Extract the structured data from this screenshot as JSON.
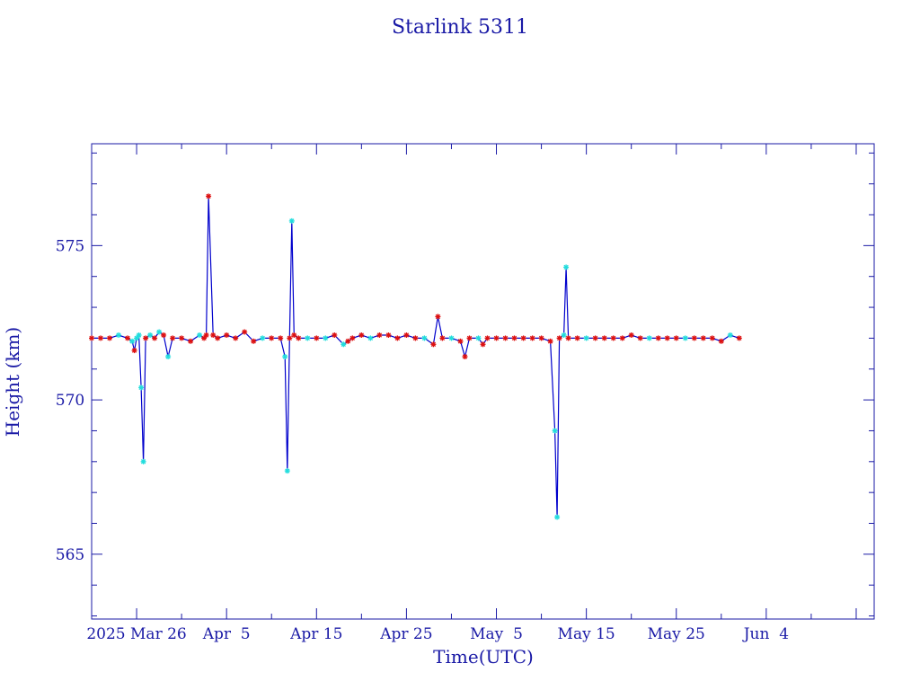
{
  "chart_data": {
    "type": "line",
    "title": "Starlink 5311",
    "xlabel": "Time(UTC)",
    "ylabel": "Height (km)",
    "x_tick_labels": [
      "2025 Mar 26",
      "Apr  5",
      "Apr 15",
      "Apr 25",
      "May  5",
      "May 15",
      "May 25",
      "Jun  4"
    ],
    "y_tick_labels": [
      "565",
      "570",
      "575"
    ],
    "xlim": [
      "2025-03-11",
      "2025-06-06"
    ],
    "ylim": [
      562.9,
      578.3
    ],
    "x_major_ticks": [
      "2025-03-16",
      "2025-03-26",
      "2025-04-05",
      "2025-04-15",
      "2025-04-25",
      "2025-05-05",
      "2025-05-15",
      "2025-05-25",
      "2025-06-04"
    ],
    "y_major_ticks": [
      565,
      570,
      575
    ],
    "y_minor_step": 1,
    "grid": false,
    "colors": {
      "frame": "#1a1aa6",
      "line": "#0000cc",
      "marker_red": "#dd1111",
      "marker_cyan": "#22dddd"
    },
    "series": [
      {
        "x": [
          "2025-03-11",
          "2025-03-12",
          "2025-03-13",
          "2025-03-14",
          "2025-03-15",
          "2025-03-15 12:00",
          "2025-03-15 18:00",
          "2025-03-16",
          "2025-03-16 06:00",
          "2025-03-16 12:00",
          "2025-03-16 18:00",
          "2025-03-17",
          "2025-03-17 12:00",
          "2025-03-18",
          "2025-03-18 12:00",
          "2025-03-19",
          "2025-03-19 12:00",
          "2025-03-20",
          "2025-03-21",
          "2025-03-22",
          "2025-03-23",
          "2025-03-23 12:00",
          "2025-03-23 18:00",
          "2025-03-24",
          "2025-03-24 12:00",
          "2025-03-25",
          "2025-03-26",
          "2025-03-27",
          "2025-03-28",
          "2025-03-29",
          "2025-03-30",
          "2025-03-31",
          "2025-04-01",
          "2025-04-01 12:00",
          "2025-04-01 18:00",
          "2025-04-02",
          "2025-04-02 06:00",
          "2025-04-02 12:00",
          "2025-04-03",
          "2025-04-04",
          "2025-04-05",
          "2025-04-06",
          "2025-04-07",
          "2025-04-08",
          "2025-04-08 12:00",
          "2025-04-09",
          "2025-04-10",
          "2025-04-11",
          "2025-04-12",
          "2025-04-13",
          "2025-04-14",
          "2025-04-15",
          "2025-04-16",
          "2025-04-17",
          "2025-04-18",
          "2025-04-18 12:00",
          "2025-04-19",
          "2025-04-20",
          "2025-04-21",
          "2025-04-21 12:00",
          "2025-04-22",
          "2025-04-23",
          "2025-04-23 12:00",
          "2025-04-24",
          "2025-04-25",
          "2025-04-26",
          "2025-04-27",
          "2025-04-28",
          "2025-04-29",
          "2025-04-30",
          "2025-05-01",
          "2025-05-01 12:00",
          "2025-05-01 18:00",
          "2025-05-02",
          "2025-05-02 12:00",
          "2025-05-02 18:00",
          "2025-05-03",
          "2025-05-04",
          "2025-05-05",
          "2025-05-06",
          "2025-05-07",
          "2025-05-08",
          "2025-05-09",
          "2025-05-10",
          "2025-05-11",
          "2025-05-12",
          "2025-05-13",
          "2025-05-14",
          "2025-05-15",
          "2025-05-16",
          "2025-05-17",
          "2025-05-18",
          "2025-05-19",
          "2025-05-20",
          "2025-05-21",
          "2025-05-22"
        ],
        "y": [
          572.0,
          572.0,
          572.0,
          572.1,
          572.0,
          571.9,
          571.6,
          572.0,
          572.1,
          570.4,
          568.0,
          572.0,
          572.1,
          572.0,
          572.2,
          572.1,
          571.4,
          572.0,
          572.0,
          571.9,
          572.1,
          572.0,
          572.1,
          576.6,
          572.1,
          572.0,
          572.1,
          572.0,
          572.2,
          571.9,
          572.0,
          572.0,
          572.0,
          571.4,
          567.7,
          572.0,
          575.8,
          572.1,
          572.0,
          572.0,
          572.0,
          572.0,
          572.1,
          571.8,
          571.9,
          572.0,
          572.1,
          572.0,
          572.1,
          572.1,
          572.0,
          572.1,
          572.0,
          572.0,
          571.8,
          572.7,
          572.0,
          572.0,
          571.9,
          571.4,
          572.0,
          572.0,
          571.8,
          572.0,
          572.0,
          572.0,
          572.0,
          572.0,
          572.0,
          572.0,
          571.9,
          569.0,
          566.2,
          572.0,
          572.1,
          574.3,
          572.0,
          572.0,
          572.0,
          572.0,
          572.0,
          572.0,
          572.0,
          572.1,
          572.0,
          572.0,
          572.0,
          572.0,
          572.0,
          572.0,
          572.0,
          572.0,
          572.0,
          571.9,
          572.1,
          572.0
        ],
        "markers": [
          "r",
          "r",
          "r",
          "c",
          "r",
          "c",
          "r",
          "c",
          "c",
          "c",
          "c",
          "r",
          "c",
          "r",
          "c",
          "r",
          "c",
          "r",
          "r",
          "r",
          "c",
          "r",
          "r",
          "r",
          "r",
          "r",
          "r",
          "r",
          "r",
          "r",
          "c",
          "r",
          "r",
          "c",
          "c",
          "r",
          "c",
          "r",
          "r",
          "c",
          "r",
          "c",
          "r",
          "c",
          "r",
          "r",
          "r",
          "c",
          "r",
          "r",
          "r",
          "r",
          "r",
          "c",
          "r",
          "r",
          "r",
          "c",
          "r",
          "r",
          "r",
          "c",
          "r",
          "r",
          "r",
          "r",
          "r",
          "r",
          "r",
          "r",
          "r",
          "c",
          "c",
          "r",
          "c",
          "c",
          "r",
          "r",
          "c",
          "r",
          "r",
          "r",
          "r",
          "r",
          "r",
          "c",
          "r",
          "r",
          "r",
          "c",
          "r",
          "r",
          "r",
          "r",
          "c",
          "r"
        ]
      }
    ]
  }
}
